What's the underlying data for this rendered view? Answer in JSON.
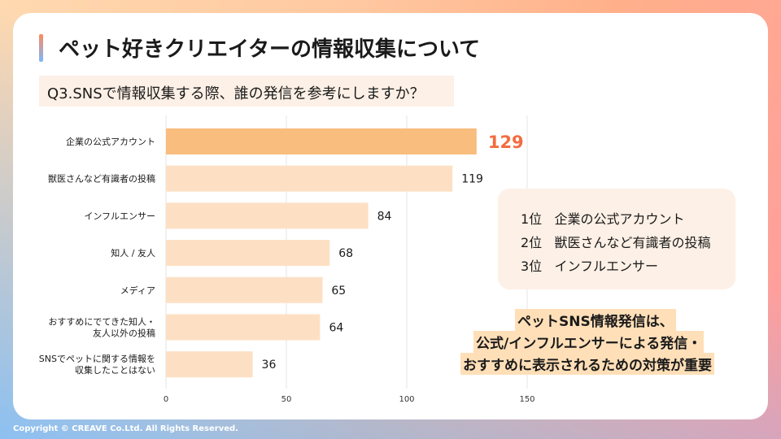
{
  "header": {
    "title": "ペット好きクリエイターの情報収集について",
    "question": "Q3.SNSで情報収集する際、誰の発信を参考にしますか？"
  },
  "chart_data": {
    "type": "bar",
    "orientation": "horizontal",
    "categories": [
      [
        "企業の公式アカウント"
      ],
      [
        "獣医さんなど有識者の投稿"
      ],
      [
        "インフルエンサー"
      ],
      [
        "知人 / 友人"
      ],
      [
        "メディア"
      ],
      [
        "おすすめにでてきた知人・",
        "友人以外の投稿"
      ],
      [
        "SNSでペットに関する情報を",
        "収集したことはない"
      ]
    ],
    "values": [
      129,
      119,
      84,
      68,
      65,
      64,
      36
    ],
    "xlim": [
      0,
      150
    ],
    "xticks": [
      0,
      50,
      100,
      150
    ],
    "grid": true,
    "highlight_index": 0,
    "colors": {
      "bar": "#fde0c4",
      "highlight_bar": "#f9bd7e",
      "highlight_value": "#f36c3f",
      "grid": "#e5e5e5"
    }
  },
  "summary": {
    "items": [
      {
        "rank": "1位",
        "label": "企業の公式アカウント"
      },
      {
        "rank": "2位",
        "label": "獣医さんなど有識者の投稿"
      },
      {
        "rank": "3位",
        "label": "インフルエンサー"
      }
    ]
  },
  "note": {
    "lines": [
      "ペットSNS情報発信は、",
      "公式/インフルエンサーによる発信・",
      "おすすめに表示されるための対策が重要"
    ]
  },
  "footer": {
    "copyright": "Copyright © CREAVE Co.Ltd. All Rights Reserved."
  }
}
